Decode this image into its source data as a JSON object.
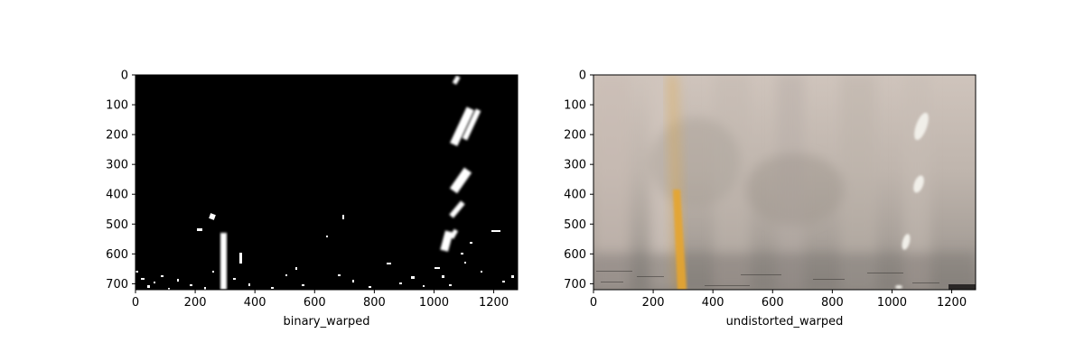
{
  "figure": {
    "background": "#ffffff"
  },
  "chart_data": [
    {
      "type": "image",
      "xlabel": "binary_warped",
      "ylabel": "",
      "xlim": [
        0,
        1280
      ],
      "ylim": [
        720,
        0
      ],
      "xticks": [
        0,
        200,
        400,
        600,
        800,
        1000,
        1200
      ],
      "yticks": [
        0,
        100,
        200,
        300,
        400,
        500,
        600,
        700
      ],
      "grid": false,
      "legend": "none",
      "colors": {
        "background": "#000000",
        "marks": "#ffffff"
      },
      "features": [
        {
          "name": "left-lane-line",
          "points": [
            [
              290,
              530
            ],
            [
              290,
              720
            ]
          ]
        },
        {
          "name": "right-lane-dash-top",
          "points": [
            [
              1080,
              0
            ],
            [
              1070,
              20
            ]
          ]
        },
        {
          "name": "right-lane-dash-upper",
          "points": [
            [
              1130,
              120
            ],
            [
              1090,
              230
            ]
          ]
        },
        {
          "name": "right-lane-dash-middle",
          "points": [
            [
              1100,
              330
            ],
            [
              1070,
              390
            ]
          ]
        },
        {
          "name": "right-lane-dash-lower",
          "points": [
            [
              1090,
              430
            ],
            [
              1050,
              480
            ]
          ]
        },
        {
          "name": "right-lane-dash-bottom",
          "points": [
            [
              1070,
              530
            ],
            [
              1040,
              580
            ]
          ]
        }
      ]
    },
    {
      "type": "image",
      "xlabel": "undistorted_warped",
      "ylabel": "",
      "xlim": [
        0,
        1280
      ],
      "ylim": [
        720,
        0
      ],
      "xticks": [
        0,
        200,
        400,
        600,
        800,
        1000,
        1200
      ],
      "yticks": [
        0,
        100,
        200,
        300,
        400,
        500,
        600,
        700
      ],
      "grid": false,
      "legend": "none",
      "colors": {
        "road": "#b8aea6",
        "road_dark": "#8f877f",
        "lane_yellow": "#e2a431",
        "lane_white": "#f1efe9",
        "sky": "#d9cfc7"
      },
      "features": [
        {
          "name": "yellow-left-lane-line",
          "points": [
            [
              260,
              0
            ],
            [
              295,
              720
            ]
          ]
        },
        {
          "name": "white-right-lane-dash-upper",
          "points": [
            [
              1120,
              110
            ],
            [
              1100,
              210
            ]
          ]
        },
        {
          "name": "white-right-lane-dash-middle",
          "points": [
            [
              1110,
              330
            ],
            [
              1090,
              390
            ]
          ]
        },
        {
          "name": "white-right-lane-dash-lower",
          "points": [
            [
              1050,
              540
            ],
            [
              1040,
              590
            ]
          ]
        }
      ]
    }
  ]
}
